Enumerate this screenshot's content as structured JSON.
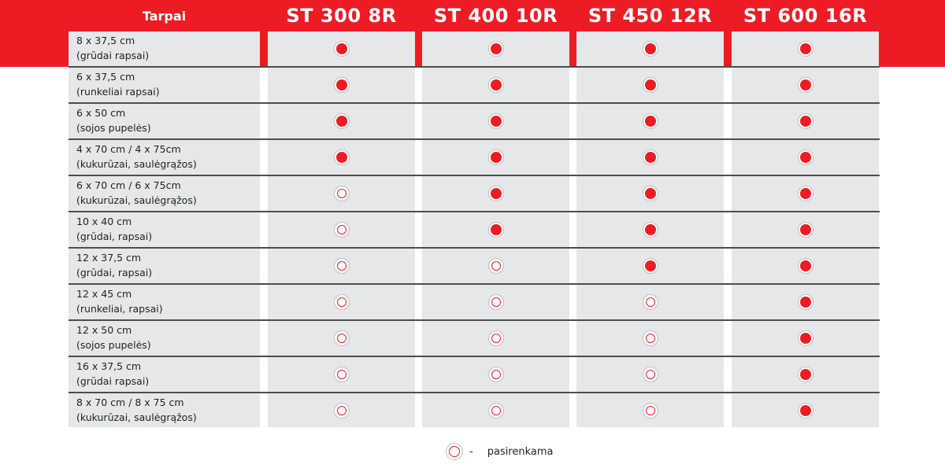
{
  "header": {
    "label": "Tarpai",
    "models": [
      "ST 300 8R",
      "ST 400 10R",
      "ST 450 12R",
      "ST 600 16R"
    ]
  },
  "rows": [
    {
      "line1": "8 x 37,5 cm",
      "line2": "(grūdai rapsai)",
      "marks": [
        "standard",
        "standard",
        "standard",
        "standard"
      ]
    },
    {
      "line1": "6 x 37,5 cm",
      "line2": "(runkeliai rapsai)",
      "marks": [
        "standard",
        "standard",
        "standard",
        "standard"
      ]
    },
    {
      "line1": "6 x 50 cm",
      "line2": "(sojos pupelės)",
      "marks": [
        "standard",
        "standard",
        "standard",
        "standard"
      ]
    },
    {
      "line1": "4 x 70 cm / 4 x 75cm",
      "line2": "(kukurūzai, saulėgrąžos)",
      "marks": [
        "standard",
        "standard",
        "standard",
        "standard"
      ]
    },
    {
      "line1": "6 x 70 cm / 6 x 75cm",
      "line2": "(kukurūzai, saulėgrąžos)",
      "marks": [
        "optional",
        "standard",
        "standard",
        "standard"
      ]
    },
    {
      "line1": "10 x  40 cm",
      "line2": "(grūdai, rapsai)",
      "marks": [
        "optional",
        "standard",
        "standard",
        "standard"
      ]
    },
    {
      "line1": "12 x  37,5 cm",
      "line2": "(grūdai, rapsai)",
      "marks": [
        "optional",
        "optional",
        "standard",
        "standard"
      ]
    },
    {
      "line1": "12 x  45 cm",
      "line2": "(runkeliai, rapsai)",
      "marks": [
        "optional",
        "optional",
        "optional",
        "standard"
      ]
    },
    {
      "line1": "12 x  50 cm",
      "line2": "(sojos pupelės)",
      "marks": [
        "optional",
        "optional",
        "optional",
        "standard"
      ]
    },
    {
      "line1": "16 x  37,5 cm",
      "line2": "(grūdai rapsai)",
      "marks": [
        "optional",
        "optional",
        "optional",
        "standard"
      ]
    },
    {
      "line1": "8 x  70 cm / 8 x 75 cm",
      "line2": "(kukurūzai, saulėgrąžos)",
      "marks": [
        "optional",
        "optional",
        "optional",
        "standard"
      ]
    }
  ],
  "legend": {
    "dash": "-",
    "text": "pasirenkama",
    "icon": "optional-circle-icon"
  },
  "colors": {
    "accent": "#ed1c24",
    "cell_bg": "#e6e7e8",
    "divider": "#4d4d4f"
  }
}
